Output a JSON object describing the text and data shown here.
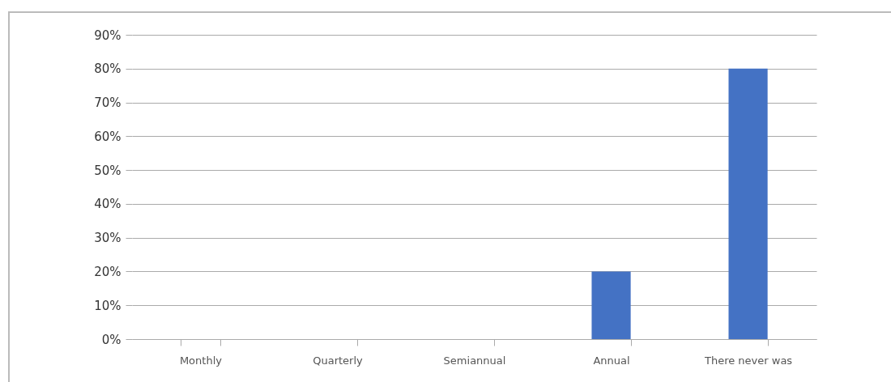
{
  "chart_data": {
    "type": "bar",
    "categories": [
      "Monthly",
      "Quarterly",
      "Semiannual",
      "Annual",
      "There never was"
    ],
    "values": [
      0,
      0,
      0,
      20,
      80
    ],
    "color": "#4472c4",
    "ylim": [
      0,
      90
    ],
    "yticks": [
      {
        "value": 0,
        "label": "0%"
      },
      {
        "value": 10,
        "label": "10%"
      },
      {
        "value": 20,
        "label": "20%"
      },
      {
        "value": 30,
        "label": "30%"
      },
      {
        "value": 40,
        "label": "40%"
      },
      {
        "value": 50,
        "label": "50%"
      },
      {
        "value": 60,
        "label": "60%"
      },
      {
        "value": 70,
        "label": "70%"
      },
      {
        "value": 80,
        "label": "80%"
      },
      {
        "value": 90,
        "label": "90%"
      }
    ],
    "grid": true
  }
}
